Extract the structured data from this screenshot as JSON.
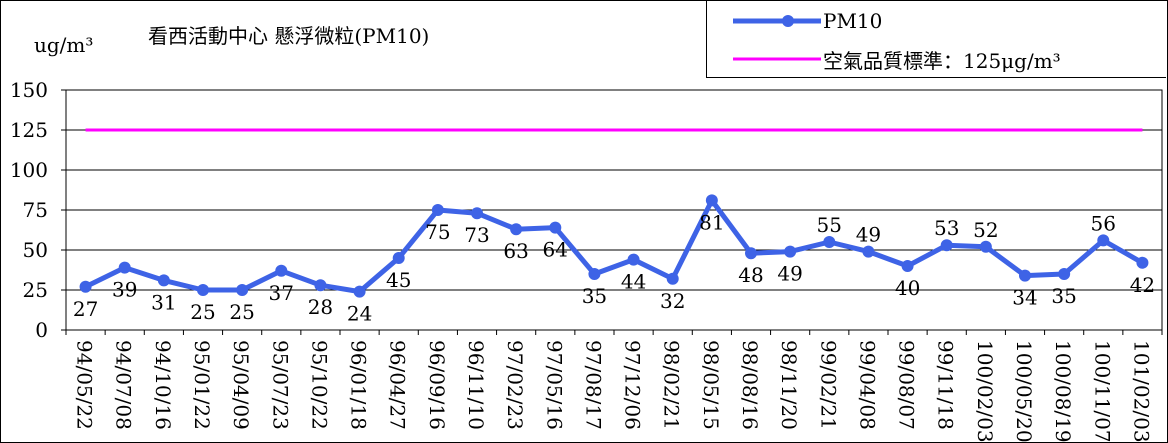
{
  "title": "看西活動中心 懸浮微粒(PM10)",
  "unit_label": "ug/m³",
  "legend": {
    "series_label": "PM10",
    "standard_label": "空氣品質標準：125μg/m³"
  },
  "colors": {
    "series": "#3e63e6",
    "standard": "#ff00ff"
  },
  "chart_data": {
    "type": "line",
    "title": "看西活動中心 懸浮微粒(PM10)",
    "ylabel": "ug/m³",
    "ylim": [
      0,
      150
    ],
    "yticks": [
      0,
      25,
      50,
      75,
      100,
      125,
      150
    ],
    "grid": "horizontal",
    "legend_position": "top-right",
    "categories": [
      "94/05/22",
      "94/07/08",
      "94/10/16",
      "95/01/22",
      "95/04/09",
      "95/07/23",
      "95/10/22",
      "96/01/18",
      "96/04/27",
      "96/09/16",
      "96/11/10",
      "97/02/23",
      "97/05/16",
      "97/08/17",
      "97/12/06",
      "98/02/21",
      "98/05/15",
      "98/08/16",
      "98/11/20",
      "99/02/21",
      "99/04/08",
      "99/08/07",
      "99/11/18",
      "100/02/03",
      "100/05/20",
      "100/08/19",
      "100/11/07",
      "101/02/03"
    ],
    "series": [
      {
        "name": "PM10",
        "values": [
          27,
          39,
          31,
          25,
          25,
          37,
          28,
          24,
          45,
          75,
          73,
          63,
          64,
          35,
          44,
          32,
          81,
          48,
          49,
          55,
          49,
          40,
          53,
          52,
          34,
          35,
          56,
          42
        ]
      },
      {
        "name": "空氣品質標準：125μg/m³",
        "values": [
          125,
          125,
          125,
          125,
          125,
          125,
          125,
          125,
          125,
          125,
          125,
          125,
          125,
          125,
          125,
          125,
          125,
          125,
          125,
          125,
          125,
          125,
          125,
          125,
          125,
          125,
          125,
          125
        ]
      }
    ],
    "label_side": [
      "below",
      "below",
      "below",
      "below",
      "below",
      "below",
      "below",
      "below",
      "below",
      "below",
      "below",
      "below",
      "below",
      "below",
      "below",
      "below",
      "below",
      "below",
      "below",
      "above",
      "above",
      "below",
      "above",
      "above",
      "below",
      "below",
      "above",
      "below"
    ]
  }
}
